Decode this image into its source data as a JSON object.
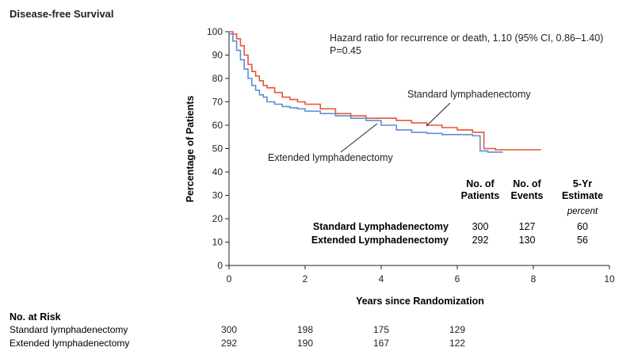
{
  "chart_data": {
    "type": "line",
    "title": "Disease-free Survival",
    "xlabel": "Years since Randomization",
    "ylabel": "Percentage of Patients",
    "xlim": [
      0,
      10
    ],
    "ylim": [
      0,
      100
    ],
    "xticks": [
      0,
      2,
      4,
      6,
      8,
      10
    ],
    "yticks": [
      0,
      10,
      20,
      30,
      40,
      50,
      60,
      70,
      80,
      90,
      100
    ],
    "grid": false,
    "annotation": {
      "line1": "Hazard ratio for recurrence or death, 1.10 (95% CI, 0.86–1.40)",
      "line2": "P=0.45"
    },
    "series": [
      {
        "name": "Standard lymphadenectomy",
        "color": "#e8543a",
        "x": [
          0,
          0.1,
          0.2,
          0.3,
          0.4,
          0.5,
          0.6,
          0.7,
          0.8,
          0.9,
          1.0,
          1.2,
          1.4,
          1.6,
          1.8,
          2.0,
          2.4,
          2.8,
          3.2,
          3.6,
          4.0,
          4.4,
          4.8,
          5.2,
          5.6,
          6.0,
          6.4,
          6.7,
          6.7,
          7.0,
          7.6,
          8.2
        ],
        "y": [
          100,
          99,
          97,
          94,
          90,
          86,
          83,
          81,
          79,
          77,
          76,
          74,
          72,
          71,
          70,
          69,
          67,
          65,
          64,
          63,
          63,
          62,
          61,
          60,
          59,
          58,
          57,
          56.5,
          50,
          49.5,
          49.5,
          49.5
        ]
      },
      {
        "name": "Extended lymphadenectomy",
        "color": "#5b8fd6",
        "x": [
          0,
          0.1,
          0.2,
          0.3,
          0.4,
          0.5,
          0.6,
          0.7,
          0.8,
          0.9,
          1.0,
          1.2,
          1.4,
          1.6,
          1.8,
          2.0,
          2.4,
          2.8,
          3.2,
          3.6,
          4.0,
          4.4,
          4.8,
          5.2,
          5.6,
          6.0,
          6.4,
          6.6,
          6.6,
          6.8,
          7.2
        ],
        "y": [
          99,
          96,
          92,
          88,
          84,
          80,
          77,
          75,
          73,
          72,
          70,
          69,
          68,
          67.5,
          67,
          66,
          65,
          64,
          63,
          62,
          60,
          58,
          57,
          56.5,
          56,
          56,
          55.5,
          53,
          49,
          48.5,
          48.5
        ]
      }
    ],
    "series_labels": [
      "Standard lymphadenectomy",
      "Extended lymphadenectomy"
    ],
    "summary_table": {
      "headers": [
        [
          "No. of",
          "Patients"
        ],
        [
          "No. of",
          "Events"
        ],
        [
          "5-Yr",
          "Estimate"
        ]
      ],
      "unit": "percent",
      "rows": [
        {
          "label": "Standard Lymphadenectomy",
          "values": [
            "300",
            "127",
            "60"
          ]
        },
        {
          "label": "Extended Lymphadenectomy",
          "values": [
            "292",
            "130",
            "56"
          ]
        }
      ]
    },
    "at_risk": {
      "title": "No. at Risk",
      "x": [
        0,
        2,
        4,
        6
      ],
      "rows": [
        {
          "label": "Standard lymphadenectomy",
          "values": [
            "300",
            "198",
            "175",
            "129"
          ]
        },
        {
          "label": "Extended lymphadenectomy",
          "values": [
            "292",
            "190",
            "167",
            "122"
          ]
        }
      ]
    }
  }
}
